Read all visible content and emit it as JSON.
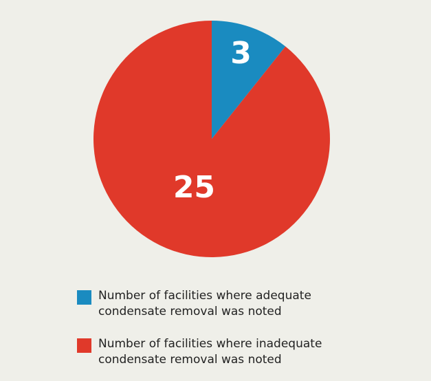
{
  "chart_data": {
    "type": "pie",
    "categories": [
      "Number of facilities where adequate condensate removal was noted",
      "Number of facilities where inadequate condensate removal was noted"
    ],
    "values": [
      3,
      25
    ],
    "colors": [
      "#1a8bc0",
      "#e0392a"
    ]
  }
}
